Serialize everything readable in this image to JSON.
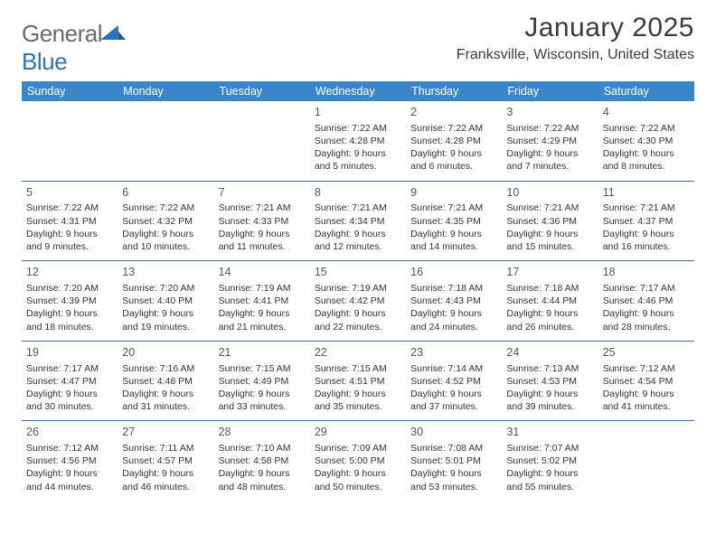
{
  "logo": {
    "word1": "General",
    "word2": "Blue"
  },
  "colors": {
    "header_bg": "#3b86c6",
    "header_text": "#ffffff",
    "row_divider": "#3b6ea0",
    "logo_gray": "#6a6a6a",
    "logo_blue": "#2f74b5",
    "text": "#333333"
  },
  "title": "January 2025",
  "location": "Franksville, Wisconsin, United States",
  "day_headers": [
    "Sunday",
    "Monday",
    "Tuesday",
    "Wednesday",
    "Thursday",
    "Friday",
    "Saturday"
  ],
  "weeks": [
    [
      null,
      null,
      null,
      {
        "n": "1",
        "sr": "7:22 AM",
        "ss": "4:28 PM",
        "dl": "9 hours and 5 minutes."
      },
      {
        "n": "2",
        "sr": "7:22 AM",
        "ss": "4:28 PM",
        "dl": "9 hours and 6 minutes."
      },
      {
        "n": "3",
        "sr": "7:22 AM",
        "ss": "4:29 PM",
        "dl": "9 hours and 7 minutes."
      },
      {
        "n": "4",
        "sr": "7:22 AM",
        "ss": "4:30 PM",
        "dl": "9 hours and 8 minutes."
      }
    ],
    [
      {
        "n": "5",
        "sr": "7:22 AM",
        "ss": "4:31 PM",
        "dl": "9 hours and 9 minutes."
      },
      {
        "n": "6",
        "sr": "7:22 AM",
        "ss": "4:32 PM",
        "dl": "9 hours and 10 minutes."
      },
      {
        "n": "7",
        "sr": "7:21 AM",
        "ss": "4:33 PM",
        "dl": "9 hours and 11 minutes."
      },
      {
        "n": "8",
        "sr": "7:21 AM",
        "ss": "4:34 PM",
        "dl": "9 hours and 12 minutes."
      },
      {
        "n": "9",
        "sr": "7:21 AM",
        "ss": "4:35 PM",
        "dl": "9 hours and 14 minutes."
      },
      {
        "n": "10",
        "sr": "7:21 AM",
        "ss": "4:36 PM",
        "dl": "9 hours and 15 minutes."
      },
      {
        "n": "11",
        "sr": "7:21 AM",
        "ss": "4:37 PM",
        "dl": "9 hours and 16 minutes."
      }
    ],
    [
      {
        "n": "12",
        "sr": "7:20 AM",
        "ss": "4:39 PM",
        "dl": "9 hours and 18 minutes."
      },
      {
        "n": "13",
        "sr": "7:20 AM",
        "ss": "4:40 PM",
        "dl": "9 hours and 19 minutes."
      },
      {
        "n": "14",
        "sr": "7:19 AM",
        "ss": "4:41 PM",
        "dl": "9 hours and 21 minutes."
      },
      {
        "n": "15",
        "sr": "7:19 AM",
        "ss": "4:42 PM",
        "dl": "9 hours and 22 minutes."
      },
      {
        "n": "16",
        "sr": "7:18 AM",
        "ss": "4:43 PM",
        "dl": "9 hours and 24 minutes."
      },
      {
        "n": "17",
        "sr": "7:18 AM",
        "ss": "4:44 PM",
        "dl": "9 hours and 26 minutes."
      },
      {
        "n": "18",
        "sr": "7:17 AM",
        "ss": "4:46 PM",
        "dl": "9 hours and 28 minutes."
      }
    ],
    [
      {
        "n": "19",
        "sr": "7:17 AM",
        "ss": "4:47 PM",
        "dl": "9 hours and 30 minutes."
      },
      {
        "n": "20",
        "sr": "7:16 AM",
        "ss": "4:48 PM",
        "dl": "9 hours and 31 minutes."
      },
      {
        "n": "21",
        "sr": "7:15 AM",
        "ss": "4:49 PM",
        "dl": "9 hours and 33 minutes."
      },
      {
        "n": "22",
        "sr": "7:15 AM",
        "ss": "4:51 PM",
        "dl": "9 hours and 35 minutes."
      },
      {
        "n": "23",
        "sr": "7:14 AM",
        "ss": "4:52 PM",
        "dl": "9 hours and 37 minutes."
      },
      {
        "n": "24",
        "sr": "7:13 AM",
        "ss": "4:53 PM",
        "dl": "9 hours and 39 minutes."
      },
      {
        "n": "25",
        "sr": "7:12 AM",
        "ss": "4:54 PM",
        "dl": "9 hours and 41 minutes."
      }
    ],
    [
      {
        "n": "26",
        "sr": "7:12 AM",
        "ss": "4:56 PM",
        "dl": "9 hours and 44 minutes."
      },
      {
        "n": "27",
        "sr": "7:11 AM",
        "ss": "4:57 PM",
        "dl": "9 hours and 46 minutes."
      },
      {
        "n": "28",
        "sr": "7:10 AM",
        "ss": "4:58 PM",
        "dl": "9 hours and 48 minutes."
      },
      {
        "n": "29",
        "sr": "7:09 AM",
        "ss": "5:00 PM",
        "dl": "9 hours and 50 minutes."
      },
      {
        "n": "30",
        "sr": "7:08 AM",
        "ss": "5:01 PM",
        "dl": "9 hours and 53 minutes."
      },
      {
        "n": "31",
        "sr": "7:07 AM",
        "ss": "5:02 PM",
        "dl": "9 hours and 55 minutes."
      },
      null
    ]
  ],
  "labels": {
    "sunrise_prefix": "Sunrise: ",
    "sunset_prefix": "Sunset: ",
    "daylight_prefix": "Daylight: "
  }
}
